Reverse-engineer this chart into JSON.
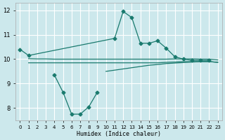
{
  "background_color": "#cce8ec",
  "line_color": "#1a7a6e",
  "grid_color": "#ffffff",
  "xlabel": "Humidex (Indice chaleur)",
  "ylim": [
    7.5,
    12.3
  ],
  "xlim": [
    -0.5,
    23.5
  ],
  "yticks": [
    8,
    9,
    10,
    11,
    12
  ],
  "xticks": [
    0,
    1,
    2,
    3,
    4,
    5,
    6,
    7,
    8,
    9,
    10,
    11,
    12,
    13,
    14,
    15,
    16,
    17,
    18,
    19,
    20,
    21,
    22,
    23
  ],
  "figsize": [
    3.2,
    2.0
  ],
  "dpi": 100,
  "upper_x": [
    0,
    1,
    11,
    12,
    13,
    14,
    15,
    16,
    17,
    18,
    19,
    20,
    21,
    22
  ],
  "upper_y": [
    10.4,
    10.15,
    10.85,
    11.95,
    11.7,
    10.65,
    10.65,
    10.75,
    10.45,
    10.1,
    10.0,
    9.95,
    9.95,
    9.95
  ],
  "flat_top_x": [
    1,
    2,
    3,
    4,
    5,
    6,
    7,
    8,
    9,
    10,
    11,
    12,
    13,
    14,
    15,
    16,
    17,
    18,
    19,
    20,
    21,
    22,
    23
  ],
  "flat_top_y": [
    10.02,
    10.01,
    10.01,
    10.0,
    10.0,
    10.0,
    10.0,
    10.0,
    10.0,
    10.0,
    10.0,
    10.0,
    10.0,
    10.0,
    10.0,
    10.0,
    10.0,
    10.01,
    10.01,
    10.01,
    10.0,
    10.0,
    9.97
  ],
  "flat_bot_x": [
    1,
    2,
    3,
    4,
    5,
    6,
    7,
    8,
    9,
    10,
    11,
    12,
    13,
    14,
    15,
    16,
    17,
    18,
    19,
    20,
    21,
    22,
    23
  ],
  "flat_bot_y": [
    9.85,
    9.85,
    9.85,
    9.85,
    9.85,
    9.85,
    9.85,
    9.85,
    9.85,
    9.85,
    9.85,
    9.85,
    9.85,
    9.85,
    9.85,
    9.85,
    9.87,
    9.88,
    9.9,
    9.9,
    9.9,
    9.9,
    9.87
  ],
  "dip_x": [
    4,
    5,
    6,
    7,
    8,
    9
  ],
  "dip_y": [
    9.35,
    8.65,
    7.75,
    7.75,
    8.05,
    8.65
  ],
  "rise_x": [
    10,
    11,
    12,
    13,
    14,
    15,
    16,
    17,
    18,
    19,
    20,
    21,
    22,
    23
  ],
  "rise_y": [
    9.5,
    9.55,
    9.6,
    9.65,
    9.7,
    9.75,
    9.78,
    9.82,
    9.84,
    9.86,
    9.88,
    9.9,
    9.9,
    9.87
  ]
}
